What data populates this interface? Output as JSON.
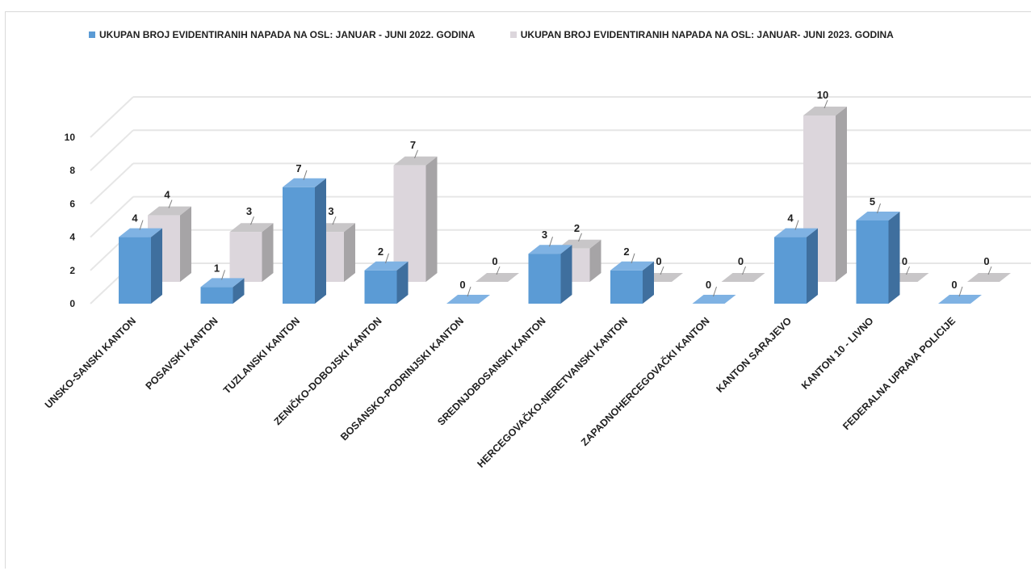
{
  "colors": {
    "series1_front": "#5b9bd5",
    "series1_side": "#3f6f9e",
    "series1_top": "#7fb2e3",
    "series2_front": "#dcd6dc",
    "series2_side": "#a6a4a6",
    "series2_top": "#c8c6c8",
    "grid": "#e6e6e6"
  },
  "chart_data": {
    "type": "bar",
    "subtype": "3d-clustered-column",
    "categories": [
      "UNSKO-SANSKI KANTON",
      "POSAVSKI KANTON",
      "TUZLANSKI KANTON",
      "ZENIČKO-DOBOJSKI KANTON",
      "BOSANSKO-PODRINJSKI KANTON",
      "SREDNJOBOSANSKI KANTON",
      "HERCEGOVAČKO-NERETVANSKI KANTON",
      "ZAPADNOHERCEGOVAČKI KANTON",
      "KANTON SARAJEVO",
      "KANTON 10 - LIVNO",
      "FEDERALNA UPRAVA POLICIJE"
    ],
    "series": [
      {
        "name": "UKUPAN BROJ EVIDENTIRANIH NAPADA NA OSL: JANUAR - JUNI 2022. GODINA",
        "values": [
          4,
          1,
          7,
          2,
          0,
          3,
          2,
          0,
          4,
          5,
          0
        ]
      },
      {
        "name": "UKUPAN BROJ EVIDENTIRANIH NAPADA NA OSL: JANUAR- JUNI 2023. GODINA",
        "values": [
          4,
          3,
          3,
          7,
          0,
          2,
          0,
          0,
          10,
          0,
          0
        ]
      }
    ],
    "y_ticks": [
      "0",
      "2",
      "4",
      "6",
      "8",
      "10"
    ],
    "ylim": [
      0,
      10
    ],
    "grid": true,
    "legend_position": "top"
  }
}
